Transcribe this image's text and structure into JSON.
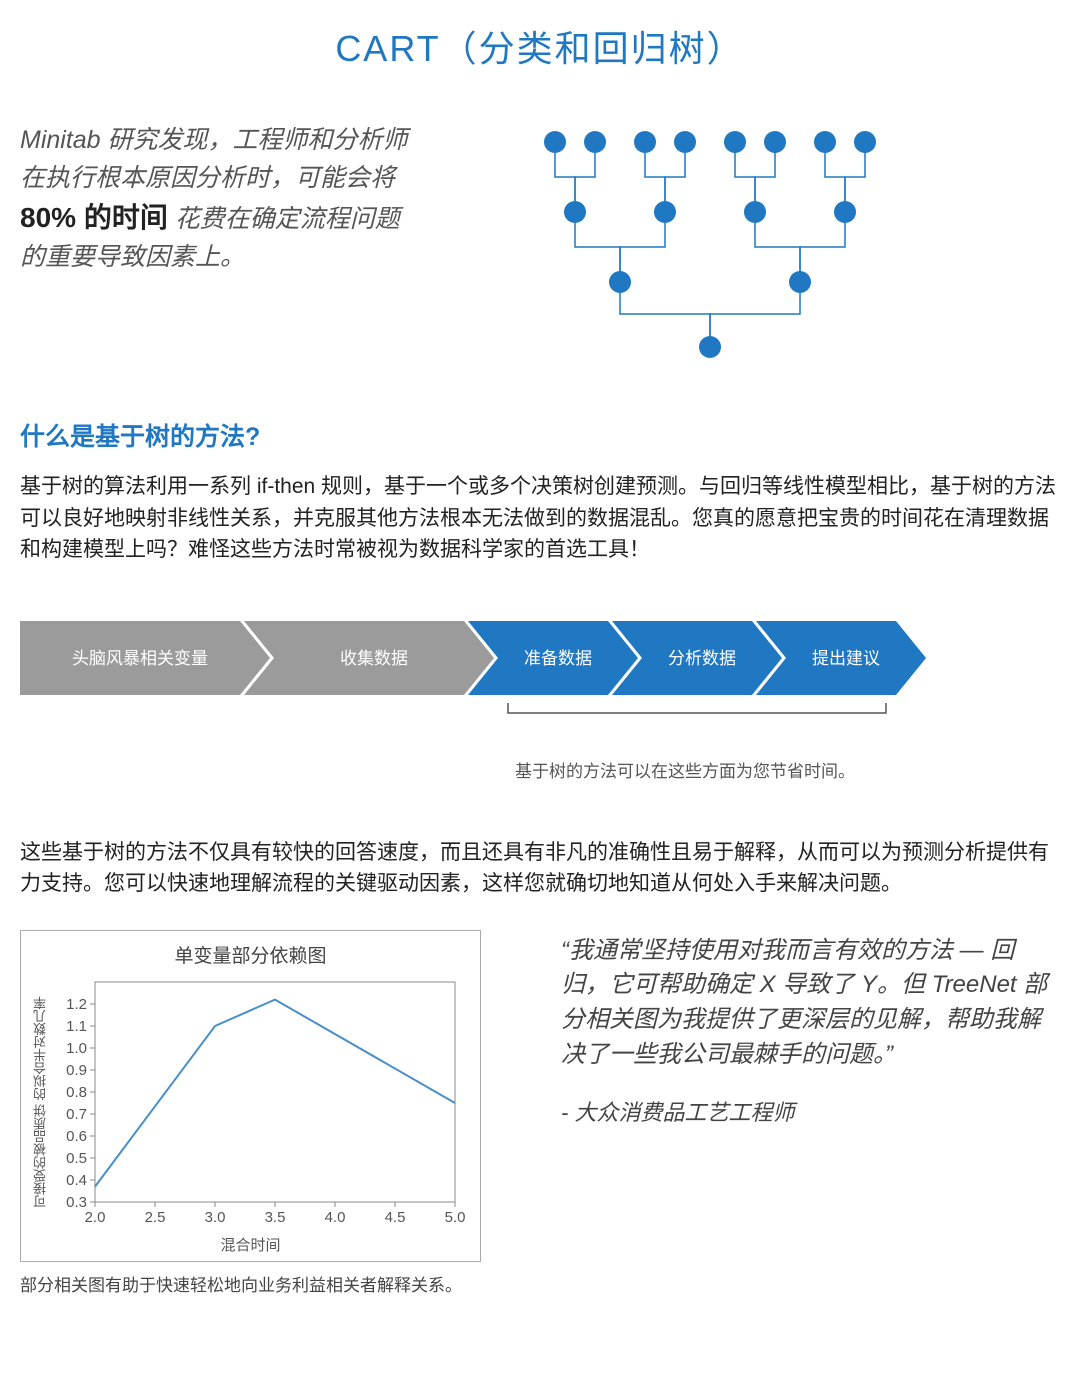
{
  "colors": {
    "accent_blue": "#1f78c1",
    "arrow_gray": "#9b9b9b",
    "arrow_blue": "#1f78c1",
    "text_gray": "#555555",
    "node_fill": "#1f78c1",
    "node_stroke": "#1f78c1",
    "connector": "#1f78c1",
    "chart_line": "#4a8ec9",
    "chart_border": "#888888"
  },
  "title": "CART（分类和回归树）",
  "intro": {
    "pre": "Minitab 研究发现，工程师和分析师在执行根本原因分析时，可能会将 ",
    "emph": "80% 的时间",
    "post": "花费在确定流程问题的重要导致因素上。"
  },
  "tree": {
    "node_radius": 11,
    "levels": [
      {
        "y": 20,
        "x": [
          40,
          80,
          130,
          170,
          220,
          260,
          310,
          350
        ]
      },
      {
        "y": 90,
        "x": [
          60,
          150,
          240,
          330
        ]
      },
      {
        "y": 160,
        "x": [
          105,
          285
        ]
      },
      {
        "y": 225,
        "x": [
          195
        ]
      }
    ],
    "edges": [
      [
        [
          40,
          20
        ],
        [
          40,
          55
        ],
        [
          60,
          55
        ],
        [
          60,
          90
        ]
      ],
      [
        [
          80,
          20
        ],
        [
          80,
          55
        ],
        [
          60,
          55
        ],
        [
          60,
          90
        ]
      ],
      [
        [
          130,
          20
        ],
        [
          130,
          55
        ],
        [
          150,
          55
        ],
        [
          150,
          90
        ]
      ],
      [
        [
          170,
          20
        ],
        [
          170,
          55
        ],
        [
          150,
          55
        ],
        [
          150,
          90
        ]
      ],
      [
        [
          220,
          20
        ],
        [
          220,
          55
        ],
        [
          240,
          55
        ],
        [
          240,
          90
        ]
      ],
      [
        [
          260,
          20
        ],
        [
          260,
          55
        ],
        [
          240,
          55
        ],
        [
          240,
          90
        ]
      ],
      [
        [
          310,
          20
        ],
        [
          310,
          55
        ],
        [
          330,
          55
        ],
        [
          330,
          90
        ]
      ],
      [
        [
          350,
          20
        ],
        [
          350,
          55
        ],
        [
          330,
          55
        ],
        [
          330,
          90
        ]
      ],
      [
        [
          60,
          90
        ],
        [
          60,
          125
        ],
        [
          105,
          125
        ],
        [
          105,
          160
        ]
      ],
      [
        [
          150,
          90
        ],
        [
          150,
          125
        ],
        [
          105,
          125
        ],
        [
          105,
          160
        ]
      ],
      [
        [
          240,
          90
        ],
        [
          240,
          125
        ],
        [
          285,
          125
        ],
        [
          285,
          160
        ]
      ],
      [
        [
          330,
          90
        ],
        [
          330,
          125
        ],
        [
          285,
          125
        ],
        [
          285,
          160
        ]
      ],
      [
        [
          105,
          160
        ],
        [
          105,
          192
        ],
        [
          195,
          192
        ],
        [
          195,
          225
        ]
      ],
      [
        [
          285,
          160
        ],
        [
          285,
          192
        ],
        [
          195,
          192
        ],
        [
          195,
          225
        ]
      ]
    ]
  },
  "section1_heading": "什么是基于树的方法?",
  "section1_body": "基于树的算法利用一系列 if-then 规则，基于一个或多个决策树创建预测。与回归等线性模型相比，基于树的方法可以良好地映射非线性关系，并克服其他方法根本无法做到的数据混乱。您真的愿意把宝贵的时间花在清理数据和构建模型上吗？难怪这些方法时常被视为数据科学家的首选工具！",
  "arrows": {
    "steps": [
      {
        "label": "头脑风暴相关变量",
        "color": "gray"
      },
      {
        "label": "收集数据",
        "color": "gray"
      },
      {
        "label": "准备数据",
        "color": "blue"
      },
      {
        "label": "分析数据",
        "color": "blue"
      },
      {
        "label": "提出建议",
        "color": "blue"
      }
    ],
    "caption": "基于树的方法可以在这些方面为您节省时间。"
  },
  "section2_body": "这些基于树的方法不仅具有较快的回答速度，而且还具有非凡的准确性且易于解释，从而可以为预测分析提供有力支持。您可以快速地理解流程的关键驱动因素，这样您就确切地知道从何处入手来解决问题。",
  "chart": {
    "title": "单变量部分依赖图",
    "ylabel": "可接受的被品质饼 的拟合半对数几率",
    "xlabel": "混合时间",
    "xlim": [
      2.0,
      5.0
    ],
    "ylim": [
      0.3,
      1.3
    ],
    "xticks": [
      2.0,
      2.5,
      3.0,
      3.5,
      4.0,
      4.5,
      5.0
    ],
    "yticks": [
      0.3,
      0.4,
      0.5,
      0.6,
      0.7,
      0.8,
      0.9,
      1.0,
      1.1,
      1.2
    ],
    "points": [
      {
        "x": 2.0,
        "y": 0.37
      },
      {
        "x": 3.0,
        "y": 1.1
      },
      {
        "x": 3.5,
        "y": 1.22
      },
      {
        "x": 5.0,
        "y": 0.75
      }
    ],
    "caption": "部分相关图有助于快速轻松地向业务利益相关者解释关系。"
  },
  "quote": {
    "text": "“我通常坚持使用对我而言有效的方法 — 回归，它可帮助确定 X 导致了 Y。但 TreeNet 部分相关图为我提供了更深层的见解，帮助我解决了一些我公司最棘手的问题。”",
    "attribution": "- 大众消费品工艺工程师"
  }
}
